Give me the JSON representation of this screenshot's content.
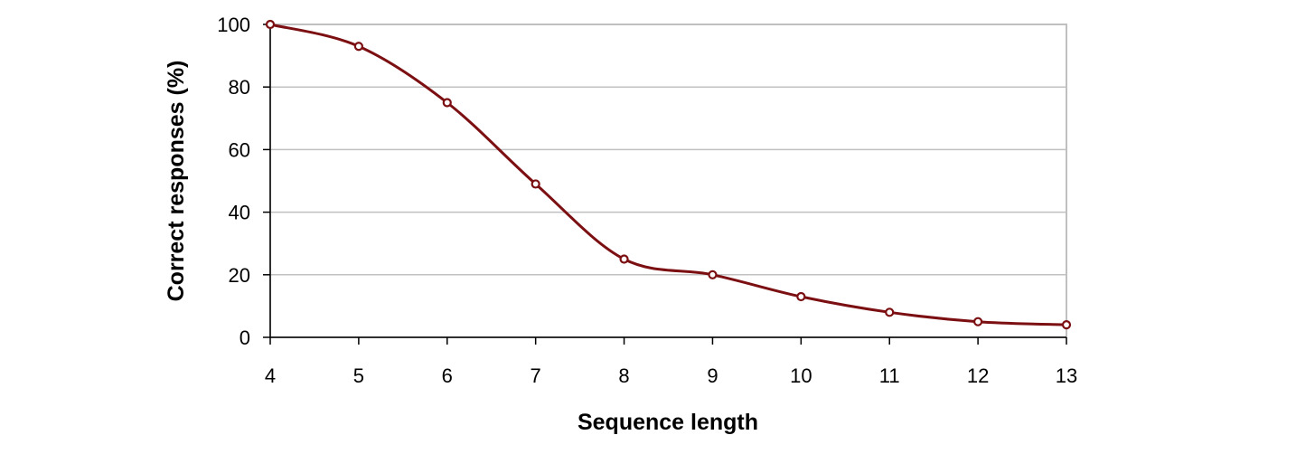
{
  "chart_data": {
    "type": "line",
    "title": "",
    "xlabel": "Sequence length",
    "ylabel": "Correct responses (%)",
    "x": [
      4,
      5,
      6,
      7,
      8,
      9,
      10,
      11,
      12,
      13
    ],
    "series": [
      {
        "values": [
          100,
          93,
          75,
          49,
          25,
          20,
          13,
          8,
          5,
          4
        ]
      }
    ],
    "xlim": [
      4,
      13
    ],
    "ylim": [
      0,
      100
    ],
    "x_ticks": [
      "4",
      "5",
      "6",
      "7",
      "8",
      "9",
      "10",
      "11",
      "12",
      "13"
    ],
    "y_ticks": [
      "0",
      "20",
      "40",
      "60",
      "80",
      "100"
    ],
    "grid": "horizontal",
    "smooth": true,
    "marker": "open-circle",
    "colors": {
      "line": "#7b0f12",
      "grid": "#c0c0c0",
      "frame": "#c0c0c0",
      "axis": "#000000"
    }
  }
}
